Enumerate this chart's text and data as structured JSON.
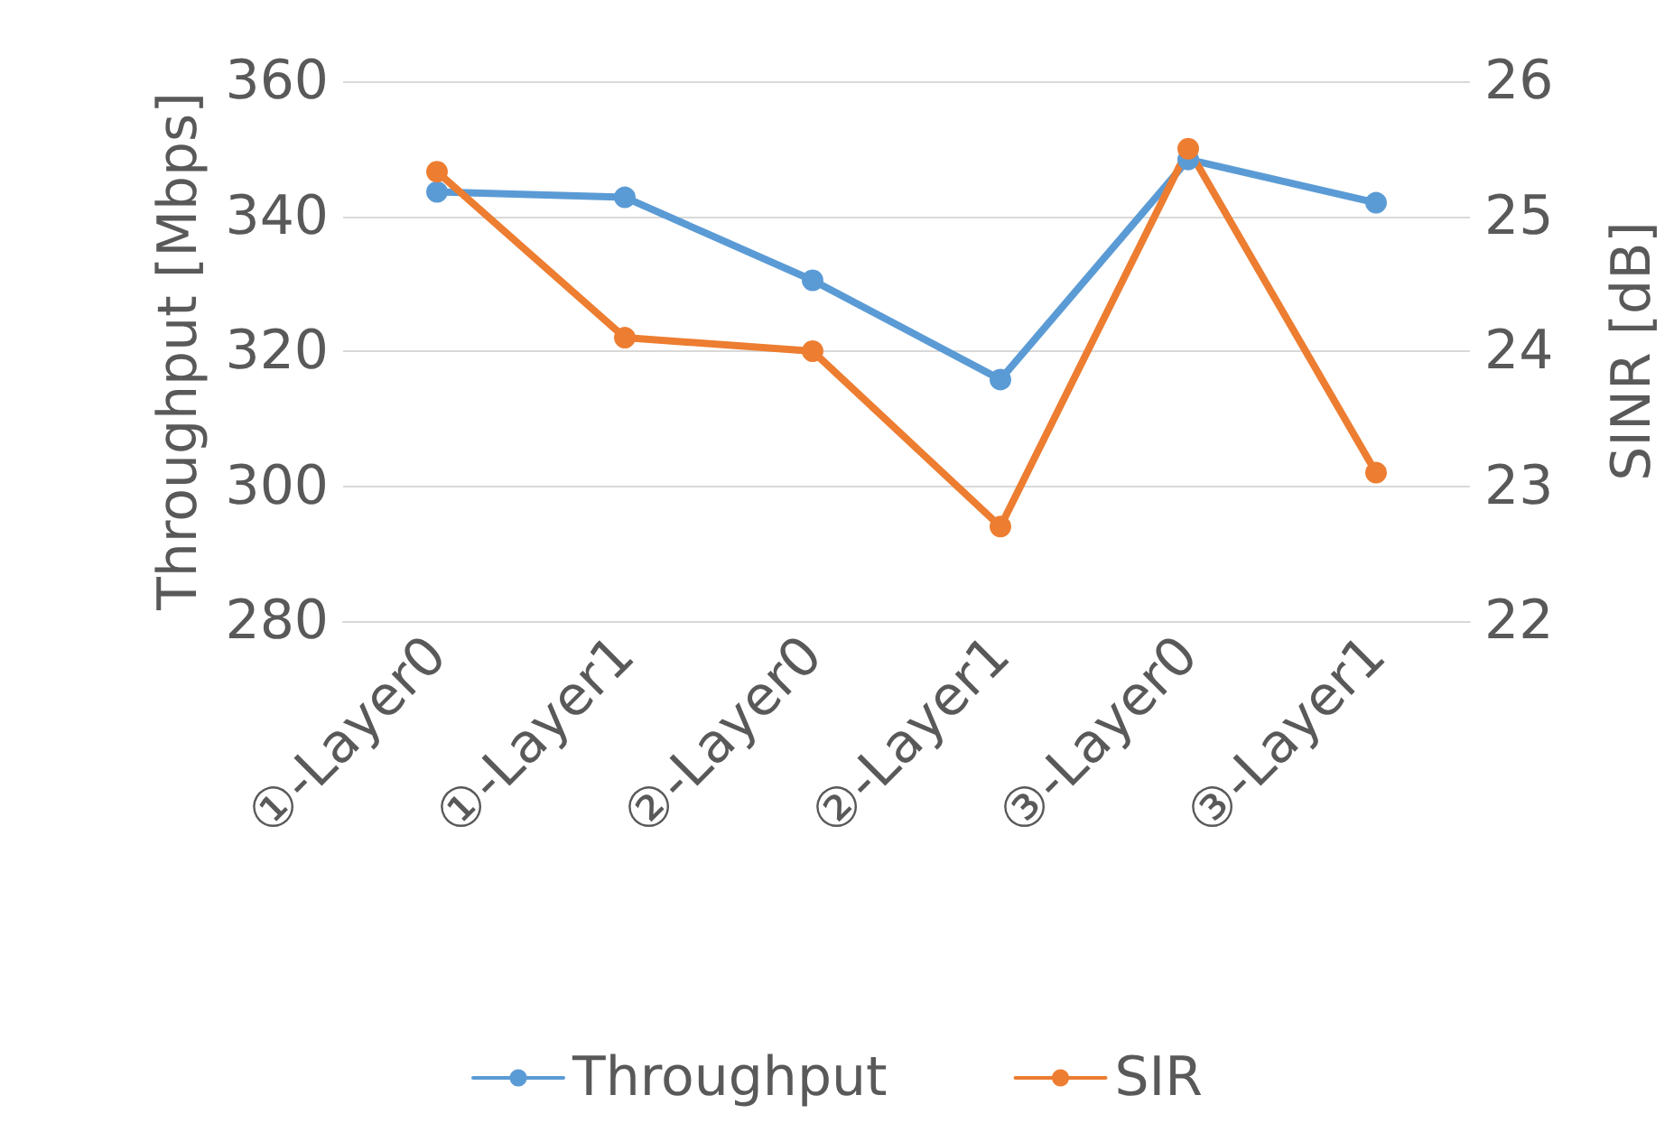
{
  "chart_data": {
    "type": "line",
    "categories": [
      "①-Layer0",
      "①-Layer1",
      "②-Layer0",
      "②-Layer1",
      "③-Layer0",
      "③-Layer1"
    ],
    "ylabel": "Throughput [Mbps]",
    "y2label": "SINR [dB]",
    "ylim": [
      280,
      360
    ],
    "yticks": [
      280,
      300,
      320,
      340,
      360
    ],
    "y2lim": [
      22,
      26
    ],
    "y2ticks": [
      22,
      23,
      24,
      25,
      26
    ],
    "series": [
      {
        "name": "Throughput",
        "color": "#5b9bd5",
        "values": [
          343.6,
          342.8,
          330.5,
          315.8,
          348.4,
          342.0
        ]
      },
      {
        "name": "SIR",
        "color": "#ed7d31",
        "axis": "y2",
        "values": [
          25.33,
          24.1,
          24.0,
          22.7,
          25.5,
          23.1
        ]
      }
    ],
    "grid": "y",
    "legend": "bottom",
    "marker": "circle",
    "line_style": "solid"
  }
}
